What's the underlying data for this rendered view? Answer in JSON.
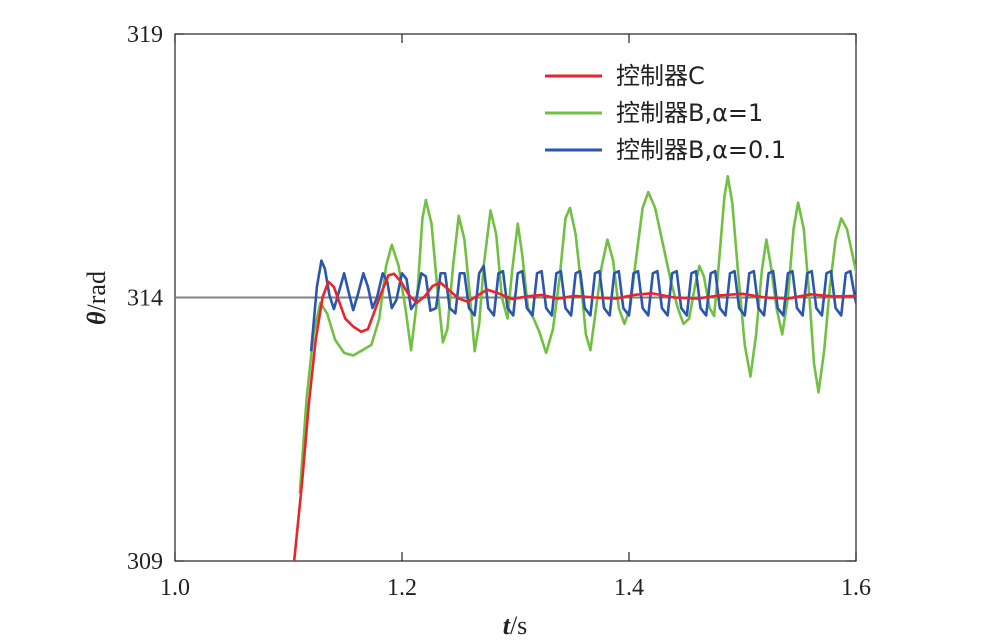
{
  "chart_data": {
    "type": "line",
    "xlabel": "t/s",
    "ylabel": "θ/rad",
    "xlim": [
      1.0,
      1.6
    ],
    "ylim": [
      309,
      319
    ],
    "xticks": [
      "1.0",
      "1.2",
      "1.4",
      "1.6"
    ],
    "yticks": [
      "309",
      "314",
      "319"
    ],
    "grid": false,
    "legend_position": "top-right",
    "reference": {
      "y": 314,
      "x_from": 1.0,
      "x_to": 1.6,
      "color": "#808080"
    },
    "series": [
      {
        "name": "控制器C",
        "color": "#e8262a",
        "points": [
          [
            1.105,
            309.0
          ],
          [
            1.112,
            310.5
          ],
          [
            1.118,
            312.0
          ],
          [
            1.124,
            313.2
          ],
          [
            1.13,
            314.0
          ],
          [
            1.135,
            314.3
          ],
          [
            1.14,
            314.2
          ],
          [
            1.145,
            313.9
          ],
          [
            1.15,
            313.6
          ],
          [
            1.157,
            313.45
          ],
          [
            1.164,
            313.35
          ],
          [
            1.17,
            313.4
          ],
          [
            1.176,
            313.75
          ],
          [
            1.182,
            314.1
          ],
          [
            1.188,
            314.42
          ],
          [
            1.193,
            314.45
          ],
          [
            1.199,
            314.3
          ],
          [
            1.206,
            314.05
          ],
          [
            1.213,
            313.9
          ],
          [
            1.22,
            314.02
          ],
          [
            1.227,
            314.22
          ],
          [
            1.234,
            314.28
          ],
          [
            1.241,
            314.15
          ],
          [
            1.25,
            313.98
          ],
          [
            1.258,
            313.92
          ],
          [
            1.266,
            314.03
          ],
          [
            1.275,
            314.15
          ],
          [
            1.285,
            314.08
          ],
          [
            1.297,
            313.97
          ],
          [
            1.31,
            314.02
          ],
          [
            1.323,
            314.05
          ],
          [
            1.337,
            313.98
          ],
          [
            1.352,
            314.03
          ],
          [
            1.37,
            314.0
          ],
          [
            1.388,
            313.98
          ],
          [
            1.405,
            314.05
          ],
          [
            1.42,
            314.08
          ],
          [
            1.44,
            314.0
          ],
          [
            1.46,
            313.98
          ],
          [
            1.48,
            314.04
          ],
          [
            1.5,
            314.07
          ],
          [
            1.52,
            314.0
          ],
          [
            1.54,
            313.98
          ],
          [
            1.56,
            314.06
          ],
          [
            1.58,
            314.02
          ],
          [
            1.6,
            314.03
          ]
        ]
      },
      {
        "name": "控制器B,α=1",
        "color": "#72c043",
        "points": [
          [
            1.11,
            310.3
          ],
          [
            1.116,
            312.1
          ],
          [
            1.122,
            313.3
          ],
          [
            1.128,
            313.9
          ],
          [
            1.134,
            313.7
          ],
          [
            1.141,
            313.2
          ],
          [
            1.149,
            312.95
          ],
          [
            1.157,
            312.9
          ],
          [
            1.165,
            313.0
          ],
          [
            1.173,
            313.1
          ],
          [
            1.18,
            313.6
          ],
          [
            1.186,
            314.6
          ],
          [
            1.191,
            315.0
          ],
          [
            1.197,
            314.6
          ],
          [
            1.203,
            313.8
          ],
          [
            1.208,
            313.0
          ],
          [
            1.213,
            313.9
          ],
          [
            1.218,
            315.5
          ],
          [
            1.221,
            315.85
          ],
          [
            1.226,
            315.4
          ],
          [
            1.231,
            314.2
          ],
          [
            1.236,
            313.15
          ],
          [
            1.24,
            313.4
          ],
          [
            1.245,
            314.6
          ],
          [
            1.25,
            315.55
          ],
          [
            1.255,
            315.1
          ],
          [
            1.26,
            314.0
          ],
          [
            1.264,
            312.98
          ],
          [
            1.268,
            313.5
          ],
          [
            1.272,
            314.6
          ],
          [
            1.278,
            315.65
          ],
          [
            1.283,
            315.2
          ],
          [
            1.288,
            314.0
          ],
          [
            1.293,
            313.6
          ],
          [
            1.297,
            314.5
          ],
          [
            1.302,
            315.4
          ],
          [
            1.306,
            314.8
          ],
          [
            1.311,
            313.8
          ],
          [
            1.316,
            313.6
          ],
          [
            1.321,
            313.35
          ],
          [
            1.327,
            312.95
          ],
          [
            1.333,
            313.4
          ],
          [
            1.339,
            314.4
          ],
          [
            1.344,
            315.5
          ],
          [
            1.348,
            315.7
          ],
          [
            1.353,
            315.2
          ],
          [
            1.358,
            314.2
          ],
          [
            1.362,
            313.3
          ],
          [
            1.366,
            313.0
          ],
          [
            1.371,
            313.8
          ],
          [
            1.376,
            314.6
          ],
          [
            1.381,
            315.1
          ],
          [
            1.386,
            314.7
          ],
          [
            1.391,
            313.8
          ],
          [
            1.396,
            313.5
          ],
          [
            1.401,
            313.8
          ],
          [
            1.406,
            314.7
          ],
          [
            1.412,
            315.7
          ],
          [
            1.417,
            316.0
          ],
          [
            1.423,
            315.7
          ],
          [
            1.43,
            315.0
          ],
          [
            1.437,
            314.3
          ],
          [
            1.443,
            313.8
          ],
          [
            1.448,
            313.5
          ],
          [
            1.453,
            313.6
          ],
          [
            1.458,
            314.2
          ],
          [
            1.462,
            314.6
          ],
          [
            1.466,
            314.4
          ],
          [
            1.471,
            313.8
          ],
          [
            1.475,
            313.65
          ],
          [
            1.479,
            314.6
          ],
          [
            1.484,
            315.9
          ],
          [
            1.487,
            316.3
          ],
          [
            1.491,
            315.8
          ],
          [
            1.496,
            314.5
          ],
          [
            1.502,
            313.1
          ],
          [
            1.507,
            312.5
          ],
          [
            1.512,
            313.3
          ],
          [
            1.517,
            314.5
          ],
          [
            1.521,
            315.1
          ],
          [
            1.525,
            314.6
          ],
          [
            1.53,
            313.8
          ],
          [
            1.535,
            313.3
          ],
          [
            1.54,
            314.0
          ],
          [
            1.545,
            315.3
          ],
          [
            1.549,
            315.8
          ],
          [
            1.554,
            315.3
          ],
          [
            1.559,
            314.0
          ],
          [
            1.563,
            312.75
          ],
          [
            1.567,
            312.2
          ],
          [
            1.572,
            313.0
          ],
          [
            1.577,
            314.2
          ],
          [
            1.582,
            315.1
          ],
          [
            1.587,
            315.5
          ],
          [
            1.592,
            315.3
          ],
          [
            1.596,
            314.9
          ],
          [
            1.6,
            314.5
          ]
        ]
      },
      {
        "name": "控制器B,α=0.1",
        "color": "#2a56b0",
        "points": [
          [
            1.12,
            313.0
          ],
          [
            1.125,
            314.2
          ],
          [
            1.129,
            314.7
          ],
          [
            1.132,
            314.55
          ],
          [
            1.136,
            314.05
          ],
          [
            1.14,
            313.78
          ],
          [
            1.145,
            314.15
          ],
          [
            1.149,
            314.46
          ],
          [
            1.153,
            314.1
          ],
          [
            1.157,
            313.76
          ],
          [
            1.161,
            314.05
          ],
          [
            1.166,
            314.46
          ],
          [
            1.17,
            314.2
          ],
          [
            1.174,
            313.8
          ],
          [
            1.178,
            314.0
          ],
          [
            1.183,
            314.46
          ],
          [
            1.187,
            314.3
          ],
          [
            1.191,
            313.8
          ],
          [
            1.195,
            313.95
          ],
          [
            1.2,
            314.46
          ],
          [
            1.204,
            314.35
          ],
          [
            1.208,
            313.78
          ],
          [
            1.212,
            313.9
          ],
          [
            1.217,
            314.46
          ],
          [
            1.221,
            314.4
          ],
          [
            1.225,
            313.75
          ],
          [
            1.23,
            313.8
          ],
          [
            1.234,
            314.46
          ],
          [
            1.238,
            314.46
          ],
          [
            1.242,
            313.8
          ],
          [
            1.247,
            313.7
          ],
          [
            1.251,
            314.46
          ],
          [
            1.255,
            314.46
          ],
          [
            1.259,
            313.8
          ],
          [
            1.264,
            313.66
          ],
          [
            1.268,
            314.46
          ],
          [
            1.272,
            314.6
          ],
          [
            1.276,
            313.8
          ],
          [
            1.281,
            313.66
          ],
          [
            1.285,
            314.46
          ],
          [
            1.289,
            314.5
          ],
          [
            1.293,
            313.8
          ],
          [
            1.298,
            313.66
          ],
          [
            1.302,
            314.46
          ],
          [
            1.306,
            314.5
          ],
          [
            1.31,
            313.8
          ],
          [
            1.315,
            313.66
          ],
          [
            1.319,
            314.46
          ],
          [
            1.323,
            314.5
          ],
          [
            1.327,
            313.8
          ],
          [
            1.332,
            313.66
          ],
          [
            1.336,
            314.46
          ],
          [
            1.34,
            314.5
          ],
          [
            1.344,
            313.8
          ],
          [
            1.349,
            313.66
          ],
          [
            1.353,
            314.46
          ],
          [
            1.357,
            314.5
          ],
          [
            1.361,
            313.8
          ],
          [
            1.366,
            313.66
          ],
          [
            1.37,
            314.46
          ],
          [
            1.374,
            314.5
          ],
          [
            1.378,
            313.8
          ],
          [
            1.383,
            313.66
          ],
          [
            1.387,
            314.46
          ],
          [
            1.391,
            314.5
          ],
          [
            1.395,
            313.8
          ],
          [
            1.4,
            313.66
          ],
          [
            1.404,
            314.46
          ],
          [
            1.408,
            314.5
          ],
          [
            1.412,
            313.8
          ],
          [
            1.417,
            313.66
          ],
          [
            1.421,
            314.46
          ],
          [
            1.425,
            314.5
          ],
          [
            1.429,
            313.8
          ],
          [
            1.434,
            313.66
          ],
          [
            1.438,
            314.46
          ],
          [
            1.442,
            314.5
          ],
          [
            1.446,
            313.8
          ],
          [
            1.451,
            313.66
          ],
          [
            1.455,
            314.46
          ],
          [
            1.459,
            314.5
          ],
          [
            1.463,
            313.8
          ],
          [
            1.468,
            313.66
          ],
          [
            1.472,
            314.46
          ],
          [
            1.476,
            314.5
          ],
          [
            1.48,
            313.8
          ],
          [
            1.485,
            313.66
          ],
          [
            1.489,
            314.46
          ],
          [
            1.493,
            314.5
          ],
          [
            1.497,
            313.8
          ],
          [
            1.502,
            313.66
          ],
          [
            1.506,
            314.46
          ],
          [
            1.51,
            314.5
          ],
          [
            1.514,
            313.8
          ],
          [
            1.519,
            313.66
          ],
          [
            1.523,
            314.46
          ],
          [
            1.527,
            314.5
          ],
          [
            1.531,
            313.8
          ],
          [
            1.536,
            313.66
          ],
          [
            1.54,
            314.46
          ],
          [
            1.544,
            314.5
          ],
          [
            1.548,
            313.8
          ],
          [
            1.553,
            313.66
          ],
          [
            1.557,
            314.46
          ],
          [
            1.561,
            314.5
          ],
          [
            1.565,
            313.8
          ],
          [
            1.57,
            313.66
          ],
          [
            1.574,
            314.46
          ],
          [
            1.578,
            314.5
          ],
          [
            1.582,
            313.8
          ],
          [
            1.587,
            313.66
          ],
          [
            1.591,
            314.46
          ],
          [
            1.595,
            314.5
          ],
          [
            1.6,
            313.9
          ]
        ]
      }
    ]
  }
}
